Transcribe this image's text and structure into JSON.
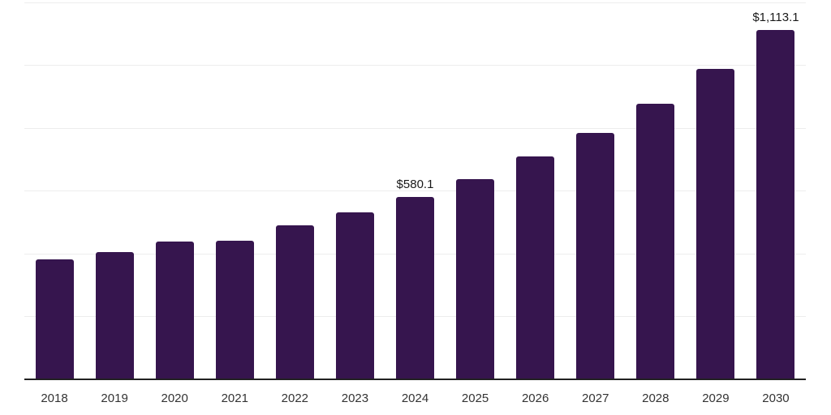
{
  "chart_data": {
    "type": "bar",
    "title": "",
    "xlabel": "",
    "ylabel": "",
    "categories": [
      "2018",
      "2019",
      "2020",
      "2021",
      "2022",
      "2023",
      "2024",
      "2025",
      "2026",
      "2027",
      "2028",
      "2029",
      "2030"
    ],
    "values": [
      382,
      405,
      438,
      442,
      490,
      532,
      580.1,
      638,
      709,
      785,
      877,
      988,
      1113.1
    ],
    "value_labels": [
      {
        "category": "2024",
        "text": "$580.1"
      },
      {
        "category": "2030",
        "text": "$1,113.1"
      }
    ],
    "ylim": [
      0,
      1200
    ],
    "gridline_step": 200,
    "grid": "horizontal",
    "legend_position": "none",
    "colors": {
      "bar": "#36154E",
      "gridline": "#ededed",
      "axis_line": "#222222",
      "tick_label": "#333333",
      "value_label": "#1a1a1a",
      "background": "#ffffff"
    }
  }
}
